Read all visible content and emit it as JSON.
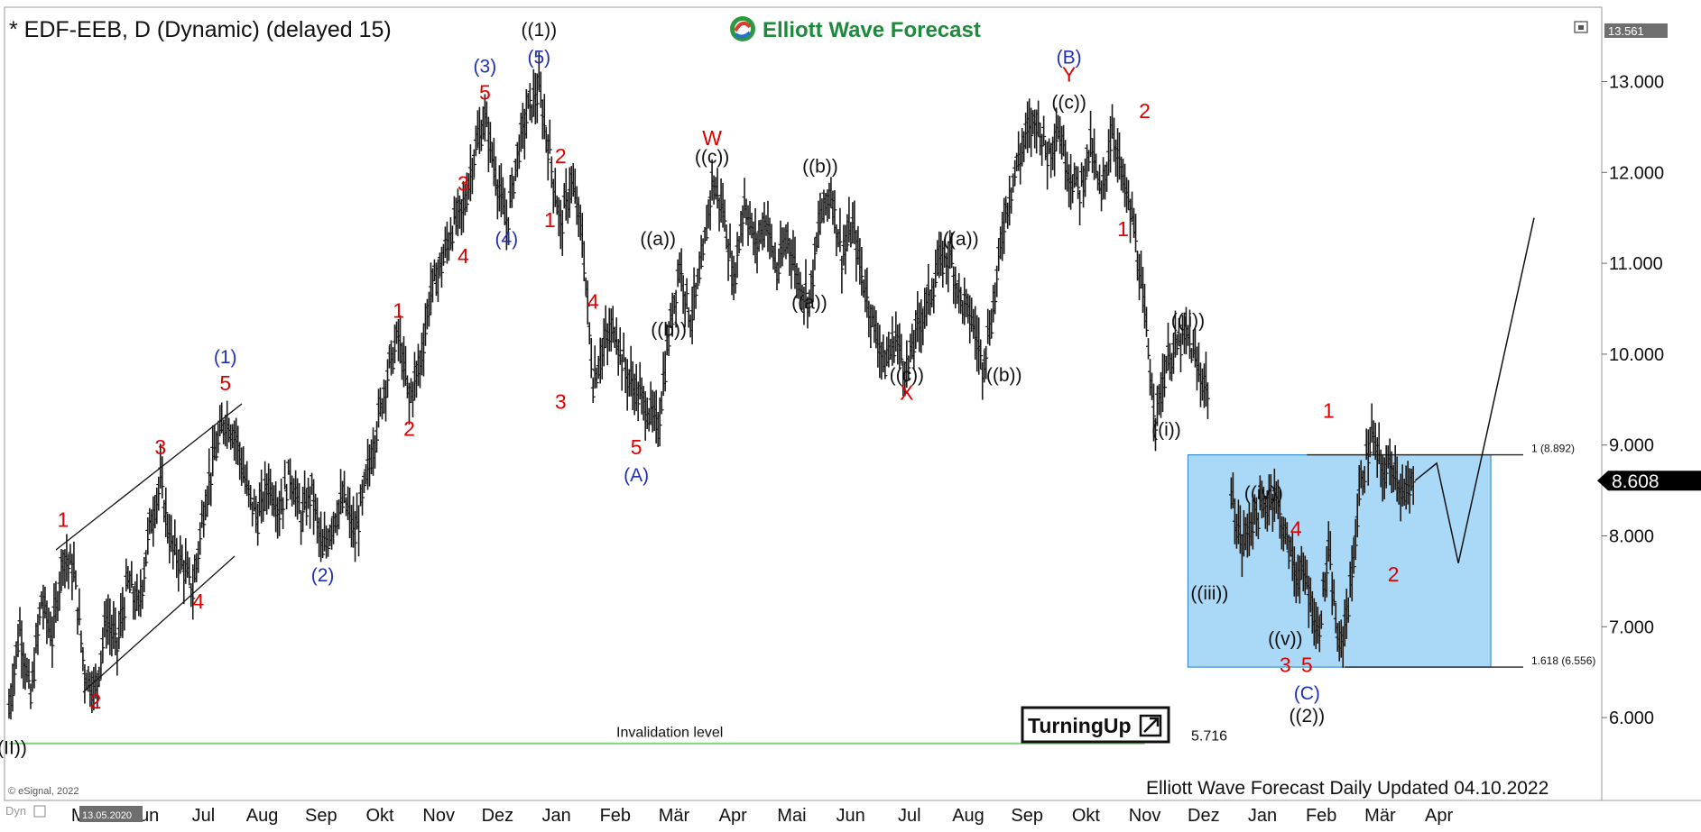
{
  "header": {
    "symbol_title": "* EDF-EEB, D (Dynamic) (delayed 15)",
    "brand": "Elliott Wave Forecast",
    "top_price_label": "13.561"
  },
  "footer": {
    "copyright": "© eSignal, 2022",
    "update_text": "Elliott Wave Forecast Daily Updated 04.10.2022",
    "cursor_date": "13.05.2020",
    "corner_label": "Dyn"
  },
  "turning_up_label": "TurningUp",
  "colors": {
    "price_bars": "#1a1a1a",
    "red_labels": "#e00000",
    "blue_labels": "#1f2fb8",
    "black_labels": "#111111",
    "invalidation_line": "#7fd27f",
    "target_box_fill": "#a9d9f7",
    "target_box_stroke": "#3b8fd0",
    "last_price_bg": "#000000"
  },
  "chart_data": {
    "type": "ohlc",
    "title": "* EDF-EEB, D (Dynamic) (delayed 15)",
    "y_axis": {
      "ticks": [
        "13.000",
        "12.000",
        "11.000",
        "10.000",
        "9.000",
        "8.000",
        "7.000",
        "6.000"
      ],
      "range": [
        5.15,
        13.9
      ]
    },
    "x_axis": {
      "ticks": [
        "Mai",
        "Jun",
        "Jul",
        "Aug",
        "Sep",
        "Okt",
        "Nov",
        "Dez",
        "Jan",
        "Feb",
        "Mär",
        "Apr",
        "Mai",
        "Jun",
        "Jul",
        "Aug",
        "Sep",
        "Okt",
        "Nov",
        "Dez",
        "Jan",
        "Feb",
        "Mär",
        "Apr"
      ]
    },
    "last_price": "8.608",
    "invalidation": {
      "label": "Invalidation level",
      "value": 5.716,
      "value_label": "5.716"
    },
    "target_box": {
      "top": 8.892,
      "bottom": 6.556,
      "top_label": "1 (8.892)",
      "bottom_label": "1.618 (6.556)"
    },
    "price_path": [
      [
        0,
        6.1
      ],
      [
        2,
        7.0
      ],
      [
        4,
        6.2
      ],
      [
        6,
        7.3
      ],
      [
        8,
        6.9
      ],
      [
        10,
        7.8
      ],
      [
        12,
        7.6
      ],
      [
        14,
        6.5
      ],
      [
        16,
        6.3
      ],
      [
        18,
        7.1
      ],
      [
        20,
        6.8
      ],
      [
        22,
        7.5
      ],
      [
        24,
        7.2
      ],
      [
        26,
        8.1
      ],
      [
        28,
        8.6
      ],
      [
        30,
        7.9
      ],
      [
        32,
        7.7
      ],
      [
        34,
        7.4
      ],
      [
        36,
        8.3
      ],
      [
        38,
        8.9
      ],
      [
        40,
        9.3
      ],
      [
        42,
        9.1
      ],
      [
        44,
        8.5
      ],
      [
        46,
        8.2
      ],
      [
        48,
        8.6
      ],
      [
        50,
        8.3
      ],
      [
        52,
        8.7
      ],
      [
        54,
        8.2
      ],
      [
        56,
        8.5
      ],
      [
        58,
        7.8
      ],
      [
        60,
        8.2
      ],
      [
        62,
        8.4
      ],
      [
        64,
        8.0
      ],
      [
        66,
        8.6
      ],
      [
        68,
        9.2
      ],
      [
        70,
        9.8
      ],
      [
        72,
        10.2
      ],
      [
        74,
        9.5
      ],
      [
        76,
        9.9
      ],
      [
        78,
        10.7
      ],
      [
        80,
        11.0
      ],
      [
        82,
        11.4
      ],
      [
        84,
        11.6
      ],
      [
        86,
        12.2
      ],
      [
        88,
        12.6
      ],
      [
        90,
        12.0
      ],
      [
        92,
        11.4
      ],
      [
        94,
        12.2
      ],
      [
        96,
        12.7
      ],
      [
        98,
        12.9
      ],
      [
        100,
        12.2
      ],
      [
        102,
        11.4
      ],
      [
        104,
        11.9
      ],
      [
        106,
        11.3
      ],
      [
        108,
        9.7
      ],
      [
        110,
        10.1
      ],
      [
        112,
        10.3
      ],
      [
        114,
        9.8
      ],
      [
        116,
        9.6
      ],
      [
        118,
        9.4
      ],
      [
        120,
        9.2
      ],
      [
        122,
        10.2
      ],
      [
        124,
        11.0
      ],
      [
        126,
        10.4
      ],
      [
        128,
        10.9
      ],
      [
        130,
        11.9
      ],
      [
        132,
        11.6
      ],
      [
        134,
        10.8
      ],
      [
        136,
        11.7
      ],
      [
        138,
        11.2
      ],
      [
        140,
        11.5
      ],
      [
        142,
        10.9
      ],
      [
        144,
        11.3
      ],
      [
        146,
        10.8
      ],
      [
        148,
        10.6
      ],
      [
        150,
        11.5
      ],
      [
        152,
        11.8
      ],
      [
        154,
        11.1
      ],
      [
        156,
        11.4
      ],
      [
        158,
        10.8
      ],
      [
        160,
        10.3
      ],
      [
        162,
        9.9
      ],
      [
        164,
        10.2
      ],
      [
        166,
        9.8
      ],
      [
        168,
        10.3
      ],
      [
        170,
        10.6
      ],
      [
        172,
        11.0
      ],
      [
        174,
        11.1
      ],
      [
        176,
        10.6
      ],
      [
        178,
        10.4
      ],
      [
        180,
        9.9
      ],
      [
        182,
        10.5
      ],
      [
        184,
        11.5
      ],
      [
        186,
        12.0
      ],
      [
        188,
        12.4
      ],
      [
        190,
        12.6
      ],
      [
        192,
        12.2
      ],
      [
        194,
        12.5
      ],
      [
        196,
        12.0
      ],
      [
        198,
        11.8
      ],
      [
        200,
        12.3
      ],
      [
        202,
        11.7
      ],
      [
        204,
        12.5
      ],
      [
        206,
        11.9
      ],
      [
        208,
        11.4
      ],
      [
        210,
        10.4
      ],
      [
        212,
        9.3
      ],
      [
        214,
        9.9
      ],
      [
        216,
        10.1
      ],
      [
        218,
        10.2
      ],
      [
        220,
        9.8
      ],
      [
        222,
        9.6
      ],
      [
        224,
        null
      ],
      [
        226,
        8.4
      ],
      [
        228,
        7.9
      ],
      [
        230,
        8.2
      ],
      [
        232,
        8.3
      ],
      [
        234,
        8.5
      ],
      [
        236,
        8.0
      ],
      [
        238,
        7.6
      ],
      [
        240,
        7.5
      ],
      [
        242,
        6.9
      ],
      [
        244,
        7.8
      ],
      [
        246,
        6.7
      ],
      [
        248,
        7.4
      ],
      [
        250,
        8.6
      ],
      [
        252,
        9.1
      ],
      [
        254,
        8.7
      ],
      [
        256,
        8.8
      ],
      [
        258,
        8.4
      ],
      [
        260,
        8.6
      ]
    ],
    "projection": [
      [
        260,
        8.608
      ],
      [
        264,
        8.8
      ],
      [
        268,
        7.7
      ],
      [
        282,
        11.5
      ]
    ],
    "wave_labels": [
      {
        "text": "((II))",
        "x": 0,
        "y": 5.6,
        "color": "black"
      },
      {
        "text": "1",
        "x": 10,
        "y": 8.1,
        "color": "red"
      },
      {
        "text": "2",
        "x": 16,
        "y": 6.1,
        "color": "red"
      },
      {
        "text": "3",
        "x": 28,
        "y": 8.9,
        "color": "red"
      },
      {
        "text": "4",
        "x": 35,
        "y": 7.2,
        "color": "red"
      },
      {
        "text": "5",
        "x": 40,
        "y": 9.6,
        "color": "red"
      },
      {
        "text": "(1)",
        "x": 40,
        "y": 9.9,
        "color": "blue"
      },
      {
        "text": "(2)",
        "x": 58,
        "y": 7.5,
        "color": "blue"
      },
      {
        "text": "1",
        "x": 72,
        "y": 10.4,
        "color": "red"
      },
      {
        "text": "2",
        "x": 74,
        "y": 9.1,
        "color": "red"
      },
      {
        "text": "3",
        "x": 84,
        "y": 11.8,
        "color": "red"
      },
      {
        "text": "4",
        "x": 84,
        "y": 11.0,
        "color": "red"
      },
      {
        "text": "5",
        "x": 88,
        "y": 12.8,
        "color": "red"
      },
      {
        "text": "(3)",
        "x": 88,
        "y": 13.1,
        "color": "blue"
      },
      {
        "text": "(4)",
        "x": 92,
        "y": 11.2,
        "color": "blue"
      },
      {
        "text": "(5)",
        "x": 98,
        "y": 13.2,
        "color": "blue"
      },
      {
        "text": "((1))",
        "x": 98,
        "y": 13.5,
        "color": "black"
      },
      {
        "text": "2",
        "x": 102,
        "y": 12.1,
        "color": "red"
      },
      {
        "text": "1",
        "x": 100,
        "y": 11.4,
        "color": "red"
      },
      {
        "text": "3",
        "x": 102,
        "y": 9.4,
        "color": "red"
      },
      {
        "text": "4",
        "x": 108,
        "y": 10.5,
        "color": "red"
      },
      {
        "text": "5",
        "x": 116,
        "y": 8.9,
        "color": "red"
      },
      {
        "text": "(A)",
        "x": 116,
        "y": 8.6,
        "color": "blue"
      },
      {
        "text": "((a))",
        "x": 120,
        "y": 11.2,
        "color": "black"
      },
      {
        "text": "((b))",
        "x": 122,
        "y": 10.2,
        "color": "black"
      },
      {
        "text": "W",
        "x": 130,
        "y": 12.3,
        "color": "red"
      },
      {
        "text": "((c))",
        "x": 130,
        "y": 12.1,
        "color": "black"
      },
      {
        "text": "((b))",
        "x": 150,
        "y": 12.0,
        "color": "black"
      },
      {
        "text": "((a))",
        "x": 148,
        "y": 10.5,
        "color": "black"
      },
      {
        "text": "((c))",
        "x": 166,
        "y": 9.7,
        "color": "black"
      },
      {
        "text": "X",
        "x": 166,
        "y": 9.5,
        "color": "red"
      },
      {
        "text": "((a))",
        "x": 176,
        "y": 11.2,
        "color": "black"
      },
      {
        "text": "((b))",
        "x": 184,
        "y": 9.7,
        "color": "black"
      },
      {
        "text": "((c))",
        "x": 196,
        "y": 12.7,
        "color": "black"
      },
      {
        "text": "Y",
        "x": 196,
        "y": 13.0,
        "color": "red"
      },
      {
        "text": "(B)",
        "x": 196,
        "y": 13.2,
        "color": "blue"
      },
      {
        "text": "1",
        "x": 206,
        "y": 11.3,
        "color": "red"
      },
      {
        "text": "2",
        "x": 210,
        "y": 12.6,
        "color": "red"
      },
      {
        "text": "((i))",
        "x": 214,
        "y": 9.1,
        "color": "black"
      },
      {
        "text": "((ii))",
        "x": 218,
        "y": 10.3,
        "color": "black"
      },
      {
        "text": "((iii))",
        "x": 222,
        "y": 7.3,
        "color": "black"
      },
      {
        "text": "((iv))",
        "x": 232,
        "y": 8.4,
        "color": "black"
      },
      {
        "text": "4",
        "x": 238,
        "y": 8.0,
        "color": "red"
      },
      {
        "text": "((v))",
        "x": 236,
        "y": 6.8,
        "color": "black"
      },
      {
        "text": "3",
        "x": 236,
        "y": 6.5,
        "color": "red"
      },
      {
        "text": "5",
        "x": 240,
        "y": 6.5,
        "color": "red"
      },
      {
        "text": "(C)",
        "x": 240,
        "y": 6.2,
        "color": "blue"
      },
      {
        "text": "((2))",
        "x": 240,
        "y": 5.95,
        "color": "black"
      },
      {
        "text": "1",
        "x": 244,
        "y": 9.3,
        "color": "red"
      },
      {
        "text": "2",
        "x": 256,
        "y": 7.5,
        "color": "red"
      }
    ]
  }
}
